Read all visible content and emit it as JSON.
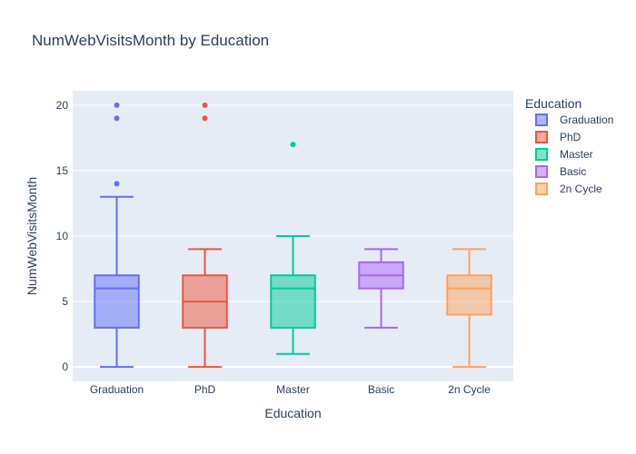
{
  "chart_data": {
    "type": "box",
    "title": "NumWebVisitsMonth by Education",
    "xlabel": "Education",
    "ylabel": "NumWebVisitsMonth",
    "ylim": [
      -1.1,
      21.1
    ],
    "yticks": [
      0,
      5,
      10,
      15,
      20
    ],
    "grid": true,
    "legend": {
      "title": "Education",
      "placement": "right"
    },
    "categories": [
      "Graduation",
      "PhD",
      "Master",
      "Basic",
      "2n Cycle"
    ],
    "series": [
      {
        "name": "Graduation",
        "color": "#636efa",
        "min": 0,
        "q1": 3,
        "median": 6,
        "q3": 7,
        "max": 13,
        "outliers": [
          14,
          19,
          20
        ]
      },
      {
        "name": "PhD",
        "color": "#ef553b",
        "min": 0,
        "q1": 3,
        "median": 5,
        "q3": 7,
        "max": 9,
        "outliers": [
          19,
          20
        ]
      },
      {
        "name": "Master",
        "color": "#00cc96",
        "min": 1,
        "q1": 3,
        "median": 6,
        "q3": 7,
        "max": 10,
        "outliers": [
          17
        ]
      },
      {
        "name": "Basic",
        "color": "#ab63fa",
        "min": 3,
        "q1": 6,
        "median": 7,
        "q3": 8,
        "max": 9,
        "outliers": []
      },
      {
        "name": "2n Cycle",
        "color": "#ffa15a",
        "min": 0,
        "q1": 4,
        "median": 6,
        "q3": 7,
        "max": 9,
        "outliers": []
      }
    ]
  }
}
